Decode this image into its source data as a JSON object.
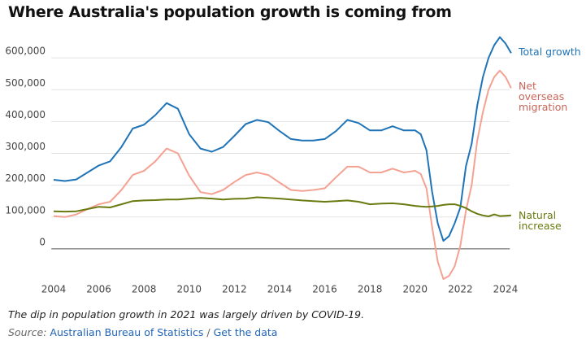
{
  "chart_data": {
    "type": "line",
    "title": "Where Australia's population growth is coming from",
    "x": [
      2004,
      2004.5,
      2005,
      2005.5,
      2006,
      2006.5,
      2007,
      2007.5,
      2008,
      2008.5,
      2009,
      2009.5,
      2010,
      2010.5,
      2011,
      2011.5,
      2012,
      2012.5,
      2013,
      2013.5,
      2014,
      2014.5,
      2015,
      2015.5,
      2016,
      2016.5,
      2017,
      2017.5,
      2018,
      2018.5,
      2019,
      2019.5,
      2020,
      2020.25,
      2020.5,
      2020.75,
      2021,
      2021.25,
      2021.5,
      2021.75,
      2022,
      2022.25,
      2022.5,
      2022.75,
      2023,
      2023.25,
      2023.5,
      2023.75,
      2024,
      2024.25
    ],
    "series": [
      {
        "name": "Total growth",
        "color": "#1f74b8",
        "label_color": "#1f74b8",
        "values": [
          217000,
          213000,
          218000,
          240000,
          262000,
          275000,
          320000,
          378000,
          390000,
          420000,
          458000,
          440000,
          360000,
          315000,
          305000,
          320000,
          355000,
          392000,
          405000,
          398000,
          370000,
          345000,
          340000,
          340000,
          345000,
          370000,
          405000,
          395000,
          372000,
          372000,
          385000,
          372000,
          372000,
          360000,
          310000,
          180000,
          80000,
          25000,
          40000,
          80000,
          130000,
          260000,
          330000,
          450000,
          540000,
          600000,
          640000,
          665000,
          645000,
          615000
        ]
      },
      {
        "name": "Net overseas migration",
        "color": "#f4a293",
        "label_color": "#c8665a",
        "values": [
          103000,
          100000,
          108000,
          125000,
          140000,
          148000,
          185000,
          232000,
          245000,
          275000,
          315000,
          300000,
          230000,
          178000,
          172000,
          185000,
          210000,
          232000,
          240000,
          232000,
          208000,
          185000,
          182000,
          185000,
          190000,
          225000,
          258000,
          258000,
          240000,
          240000,
          252000,
          240000,
          245000,
          235000,
          190000,
          70000,
          -40000,
          -95000,
          -85000,
          -55000,
          10000,
          120000,
          200000,
          340000,
          430000,
          500000,
          540000,
          560000,
          540000,
          505000
        ]
      },
      {
        "name": "Natural increase",
        "color": "#6b7a10",
        "label_color": "#6b7a10",
        "values": [
          118000,
          117000,
          118000,
          125000,
          132000,
          130000,
          140000,
          150000,
          152000,
          153000,
          155000,
          155000,
          158000,
          160000,
          158000,
          155000,
          157000,
          158000,
          162000,
          160000,
          158000,
          155000,
          152000,
          150000,
          148000,
          150000,
          152000,
          148000,
          140000,
          142000,
          143000,
          140000,
          135000,
          133000,
          132000,
          133000,
          135000,
          138000,
          140000,
          140000,
          135000,
          128000,
          118000,
          110000,
          105000,
          102000,
          108000,
          103000,
          104000,
          105000
        ]
      }
    ],
    "xlim": [
      2003.9,
      2024.3
    ],
    "xticks": [
      2004,
      2006,
      2008,
      2010,
      2012,
      2014,
      2016,
      2018,
      2020,
      2022,
      2024
    ],
    "ylim": [
      -100000,
      700000
    ],
    "yticks": [
      0,
      {
        "value": 100000,
        "label": "100,000"
      },
      {
        "value": 200000,
        "label": "200,000"
      },
      {
        "value": 300000,
        "label": "300,000"
      },
      {
        "value": 400000,
        "label": "400,000"
      },
      {
        "value": 500000,
        "label": "500,000"
      },
      {
        "value": 600000,
        "label": "600,000"
      }
    ],
    "grid": true,
    "caption": "The dip in population growth in 2021  was largely driven by COVID-19.",
    "source": {
      "label": "Source:",
      "text": "Australian Bureau of Statistics",
      "separator": "/",
      "link": "Get the data"
    }
  }
}
